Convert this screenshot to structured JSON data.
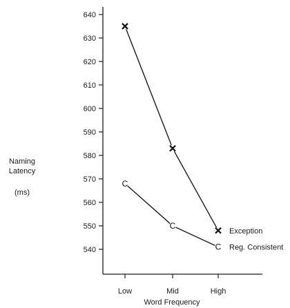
{
  "chart_data": {
    "type": "line",
    "categories": [
      "Low",
      "Mid",
      "High"
    ],
    "xlabel": "Word Frequency",
    "ylabel_lines": [
      "Naming",
      "Latency",
      "(ms)"
    ],
    "ylim": [
      535,
      644
    ],
    "yticks": [
      540,
      550,
      560,
      570,
      580,
      590,
      600,
      610,
      620,
      630,
      640
    ],
    "grid": false,
    "series": [
      {
        "name": "Exception",
        "marker": "x",
        "values": [
          635,
          583,
          548
        ]
      },
      {
        "name": "Reg. Consistent",
        "marker": "C",
        "values": [
          568,
          550,
          541
        ]
      }
    ],
    "colors": {
      "line": "#1a1a1a",
      "axis": "#1a1a1a"
    }
  }
}
